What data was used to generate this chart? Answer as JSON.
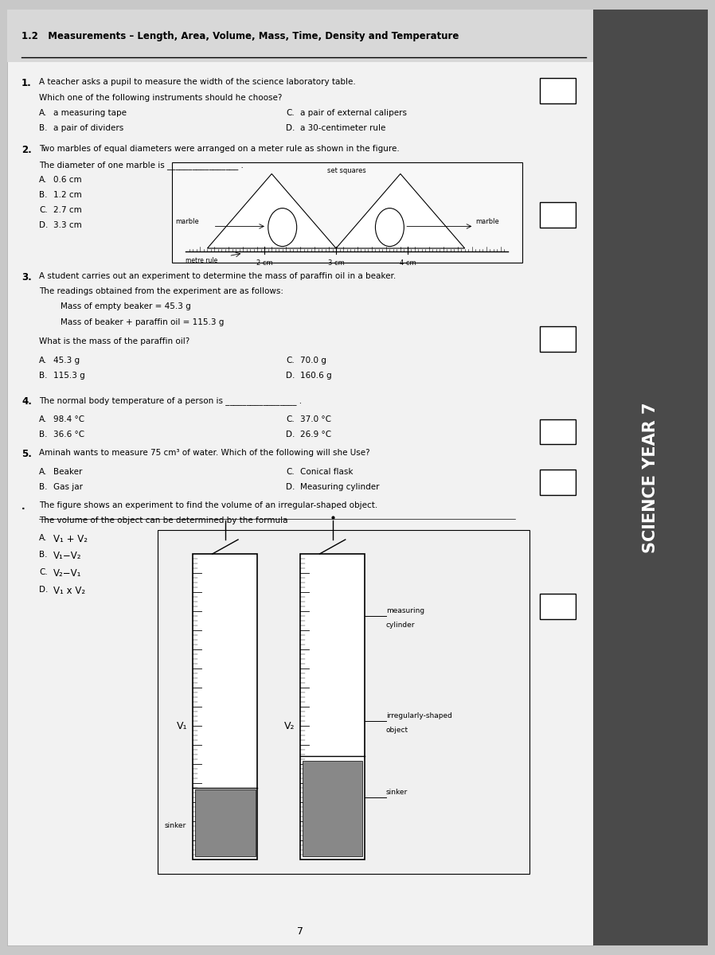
{
  "title": "1.2   Measurements – Length, Area, Volume, Mass, Time, Density and Temperature",
  "bg_color": "#e8e8e8",
  "page_bg": "#f0f0f0",
  "q1_num": "1.",
  "q1_A": "a measuring tape",
  "q1_B": "a pair of dividers",
  "q1_C": "a pair of external calipers",
  "q1_D": "a 30-centimeter rule",
  "q2_num": "2.",
  "q2_A": "0.6 cm",
  "q2_B": "1.2 cm",
  "q2_C": "2.7 cm",
  "q2_D": "3.3 cm",
  "q3_num": "3.",
  "q3_A": "45.3 g",
  "q3_B": "115.3 g",
  "q3_C": "70.0 g",
  "q3_D": "160.6 g",
  "q4_num": "4.",
  "q4_A": "98.4 °C",
  "q4_B": "36.6 °C",
  "q4_C": "37.0 °C",
  "q4_D": "26.9 °C",
  "q5_num": "5.",
  "q5_A": "Beaker",
  "q5_B": "Gas jar",
  "q5_C": "Conical flask",
  "q5_D": "Measuring cylinder",
  "q6_A": "V₁ + V₂",
  "q6_B": "V₁−V₂",
  "q6_C": "V₂−V₁",
  "q6_D": "V₁ x V₂",
  "page_num": "7",
  "sidebar_text": "SCIENCE YEAR 7"
}
